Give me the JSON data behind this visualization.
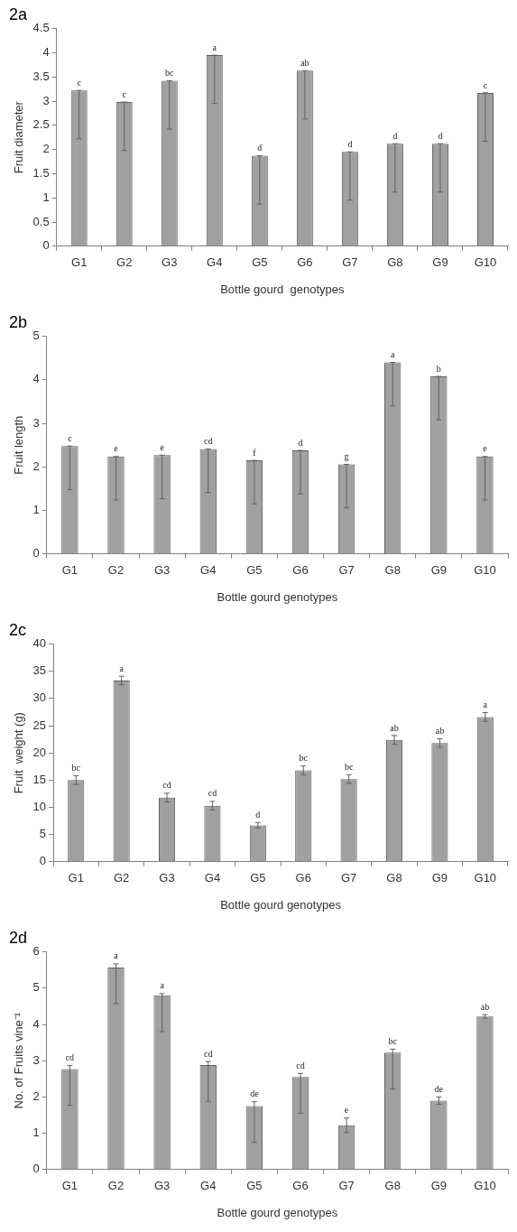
{
  "chart_data": [
    {
      "type": "bar",
      "title": "2a",
      "xlabel": "Bottle gourd  genotypes",
      "ylabel": "Fruit diameter",
      "categories": [
        "G1",
        "G2",
        "G3",
        "G4",
        "G5",
        "G6",
        "G7",
        "G8",
        "G9",
        "G10"
      ],
      "values": [
        3.22,
        2.98,
        3.42,
        3.95,
        1.87,
        3.63,
        1.95,
        2.12,
        2.12,
        3.17
      ],
      "color": "#a0a0a0",
      "errors": [
        [
          2.22,
          3.22
        ],
        [
          1.98,
          2.98
        ],
        [
          2.42,
          3.42
        ],
        [
          2.95,
          3.95
        ],
        [
          0.87,
          1.87
        ],
        [
          2.63,
          3.63
        ],
        [
          0.95,
          1.95
        ],
        [
          1.12,
          2.12
        ],
        [
          1.12,
          2.12
        ],
        [
          2.17,
          3.17
        ]
      ],
      "value_labels": [
        "c",
        "c",
        "bc",
        "a",
        "d",
        "ab",
        "d",
        "d",
        "d",
        "c"
      ],
      "ylim": [
        0,
        4.5
      ],
      "yticks": [
        0,
        0.5,
        1,
        1.5,
        2,
        2.5,
        3,
        3.5,
        4,
        4.5
      ],
      "grid": false,
      "legend": false
    },
    {
      "type": "bar",
      "title": "2b",
      "xlabel": "Bottle gourd genotypes",
      "ylabel": "Fruit length",
      "categories": [
        "G1",
        "G2",
        "G3",
        "G4",
        "G5",
        "G6",
        "G7",
        "G8",
        "G9",
        "G10"
      ],
      "values": [
        2.48,
        2.24,
        2.27,
        2.41,
        2.15,
        2.38,
        2.06,
        4.4,
        4.08,
        2.24
      ],
      "color": "#a0a0a0",
      "errors": [
        [
          1.48,
          2.48
        ],
        [
          1.24,
          2.24
        ],
        [
          1.27,
          2.27
        ],
        [
          1.41,
          2.41
        ],
        [
          1.15,
          2.15
        ],
        [
          1.38,
          2.38
        ],
        [
          1.06,
          2.06
        ],
        [
          3.4,
          4.4
        ],
        [
          3.08,
          4.08
        ],
        [
          1.24,
          2.24
        ]
      ],
      "value_labels": [
        "c",
        "e",
        "e",
        "cd",
        "f",
        "d",
        "g",
        "a",
        "b",
        "e"
      ],
      "ylim": [
        0,
        5
      ],
      "yticks": [
        0,
        1,
        2,
        3,
        4,
        5
      ],
      "grid": false,
      "legend": false
    },
    {
      "type": "bar",
      "title": "2c",
      "xlabel": "Bottle gourd genotypes",
      "ylabel": "Fruit  weight (g)",
      "categories": [
        "G1",
        "G2",
        "G3",
        "G4",
        "G5",
        "G6",
        "G7",
        "G8",
        "G9",
        "G10"
      ],
      "values": [
        15,
        33.3,
        11.8,
        10.3,
        6.7,
        16.8,
        15.2,
        22.4,
        21.8,
        26.6
      ],
      "color": "#a0a0a0",
      "errors": [
        0.8,
        0.8,
        0.8,
        0.8,
        0.5,
        0.8,
        0.8,
        0.8,
        0.8,
        0.8
      ],
      "value_labels": [
        "bc",
        "a",
        "cd",
        "cd",
        "d",
        "bc",
        "bc",
        "ab",
        "ab",
        "a"
      ],
      "ylim": [
        0,
        40
      ],
      "yticks": [
        0,
        5,
        10,
        15,
        20,
        25,
        30,
        35,
        40
      ],
      "grid": false,
      "legend": false
    },
    {
      "type": "bar",
      "title": "2d",
      "xlabel": "Bottle gourd genotypes",
      "ylabel": "No. of Fruits vine⁻¹",
      "categories": [
        "G1",
        "G2",
        "G3",
        "G4",
        "G5",
        "G6",
        "G7",
        "G8",
        "G9",
        "G10"
      ],
      "values": [
        2.77,
        5.57,
        4.8,
        2.88,
        1.75,
        2.55,
        1.22,
        3.22,
        1.9,
        4.22
      ],
      "color": "#a0a0a0",
      "errors": [
        [
          1.77,
          2.87
        ],
        [
          4.57,
          5.67
        ],
        [
          3.8,
          4.85
        ],
        [
          1.88,
          2.98
        ],
        [
          0.75,
          1.87
        ],
        [
          1.55,
          2.65
        ],
        [
          1.02,
          1.42
        ],
        [
          2.22,
          3.32
        ],
        [
          1.8,
          2.0
        ],
        [
          4.17,
          4.27
        ]
      ],
      "value_labels": [
        "cd",
        "a",
        "a",
        "cd",
        "de",
        "cd",
        "e",
        "bc",
        "de",
        "ab"
      ],
      "ylim": [
        0,
        6
      ],
      "yticks": [
        0,
        1,
        2,
        3,
        4,
        5,
        6
      ],
      "grid": false,
      "legend": false
    }
  ]
}
